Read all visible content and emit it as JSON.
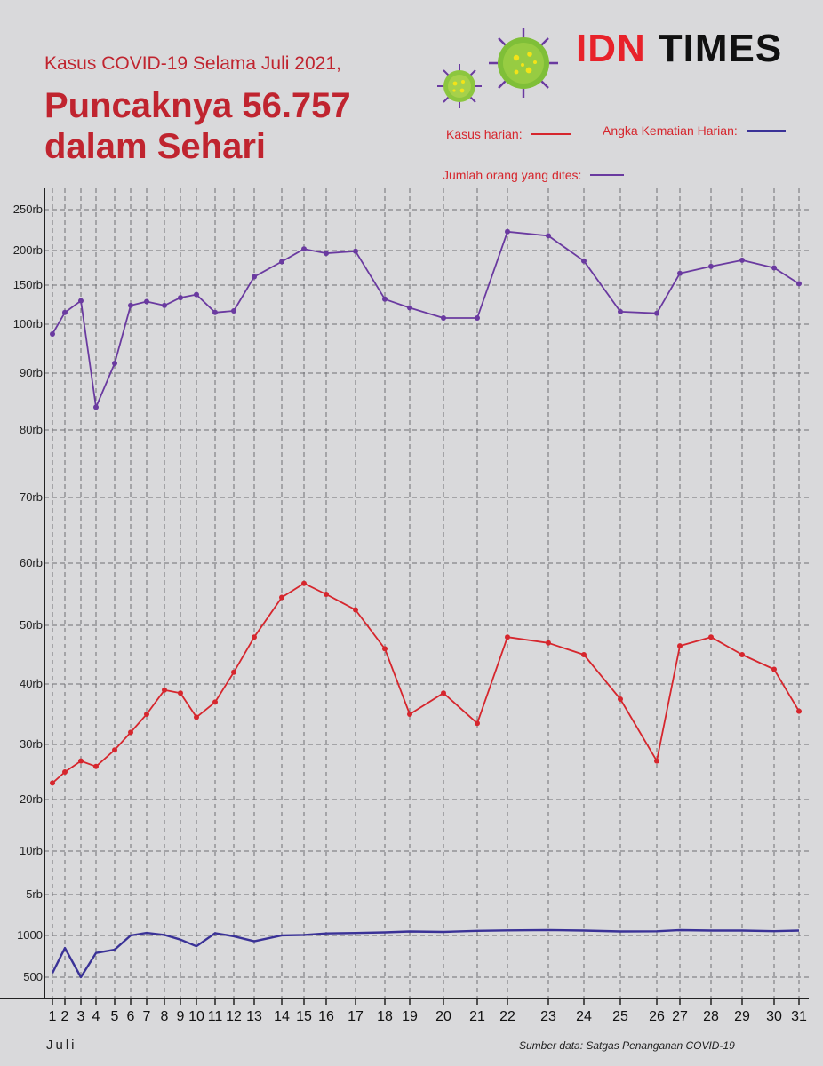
{
  "header": {
    "subtitle": "Kasus COVID-19 Selama Juli 2021,",
    "title": "Puncaknya 56.757 dalam Sehari"
  },
  "brand": {
    "part1": "IDN",
    "part2": "TIMES",
    "colors": {
      "idn": "#e8222a",
      "times": "#111111"
    }
  },
  "icons": [
    "virus-icon-small",
    "virus-icon-large"
  ],
  "footer": {
    "month_label": "Juli",
    "source": "Sumber data: Satgas Penanganan COVID-19"
  },
  "chart_data": {
    "type": "line",
    "x": [
      1,
      2,
      3,
      4,
      5,
      6,
      7,
      8,
      9,
      10,
      11,
      12,
      13,
      14,
      15,
      16,
      17,
      18,
      19,
      20,
      21,
      22,
      23,
      24,
      25,
      26,
      27,
      28,
      29,
      30,
      31
    ],
    "x_tick_labels": [
      "1",
      "2",
      "3",
      "4",
      "5",
      "6",
      "7",
      "8",
      "9",
      "10",
      "11",
      "12",
      "13",
      "14",
      "15",
      "16",
      "17",
      "18",
      "19",
      "20",
      "21",
      "22",
      "23",
      "24",
      "25",
      "26",
      "27",
      "28",
      "29",
      "30",
      "31"
    ],
    "y_tick_labels": [
      "500",
      "1000",
      "5rb",
      "10rb",
      "20rb",
      "30rb",
      "40rb",
      "50rb",
      "60rb",
      "70rb",
      "80rb",
      "90rb",
      "100rb",
      "150rb",
      "200rb",
      "250rb"
    ],
    "y_tick_values": [
      500,
      1000,
      5000,
      10000,
      20000,
      30000,
      40000,
      50000,
      60000,
      70000,
      80000,
      90000,
      100000,
      150000,
      200000,
      250000
    ],
    "xlabel": "Juli",
    "grid": true,
    "series": [
      {
        "name": "Kasus harian:",
        "color": "#d6262d",
        "markers": true,
        "values": [
          23000,
          25000,
          27000,
          26000,
          29000,
          32000,
          35000,
          39000,
          38500,
          34500,
          37000,
          42000,
          48000,
          54500,
          56757,
          55000,
          52500,
          46000,
          35000,
          38500,
          33500,
          48000,
          47000,
          45000,
          37500,
          27000,
          46500,
          48000,
          45000,
          42500,
          35500
        ]
      },
      {
        "name": "Angka Kematian Harian:",
        "color": "#3a3297",
        "markers": false,
        "values": [
          550,
          850,
          480,
          790,
          830,
          1000,
          1250,
          1050,
          950,
          870,
          1230,
          990,
          930,
          1010,
          1050,
          1200,
          1240,
          1300,
          1390,
          1350,
          1450,
          1500,
          1530,
          1480,
          1390,
          1410,
          1520,
          1480,
          1480,
          1420,
          1480
        ]
      },
      {
        "name": "Jumlah orang yang dites:",
        "color": "#6a3aa0",
        "markers": true,
        "values": [
          98000,
          115000,
          130000,
          84000,
          92000,
          124000,
          129000,
          124000,
          134000,
          138000,
          115000,
          117000,
          162000,
          184000,
          202000,
          196000,
          199000,
          132000,
          121000,
          108000,
          108000,
          223000,
          218000,
          185000,
          116000,
          114000,
          167000,
          177000,
          186000,
          175000,
          152000
        ]
      }
    ]
  }
}
